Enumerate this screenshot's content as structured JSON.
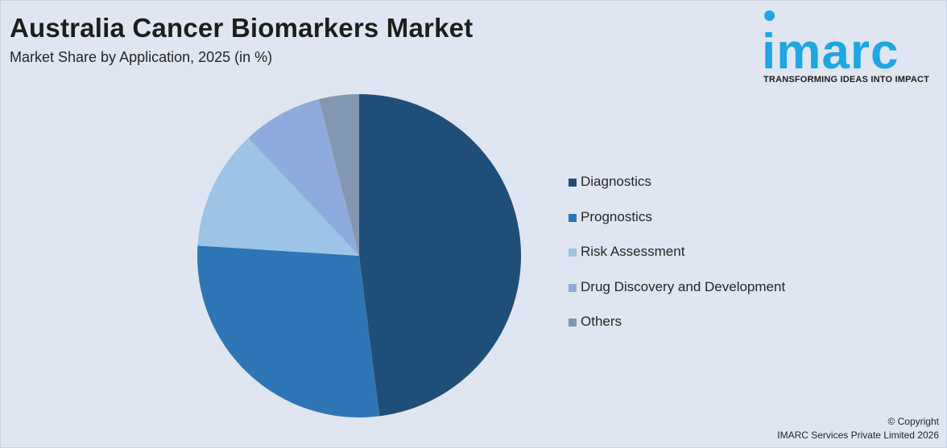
{
  "header": {
    "title": "Australia Cancer Biomarkers Market",
    "subtitle": "Market Share by Application, 2025 (in %)"
  },
  "logo": {
    "wordmark": "imarc",
    "tagline": "TRANSFORMING IDEAS INTO IMPACT",
    "color": "#1ea7e1"
  },
  "footer": {
    "copyright_line1": "© Copyright",
    "copyright_line2": "IMARC Services Private Limited 2026"
  },
  "chart_data": {
    "type": "pie",
    "title": "Australia Cancer Biomarkers Market",
    "subtitle": "Market Share by Application, 2025 (in %)",
    "legend_position": "right",
    "categories": [
      "Diagnostics",
      "Prognostics",
      "Risk Assessment",
      "Drug Discovery and Development",
      "Others"
    ],
    "values": [
      48,
      28,
      12,
      8,
      4
    ],
    "colors": [
      "#1f4e79",
      "#2e75b6",
      "#9dc3e6",
      "#8faadc",
      "#8497b0"
    ],
    "start_angle_deg": 0,
    "direction": "clockwise"
  }
}
